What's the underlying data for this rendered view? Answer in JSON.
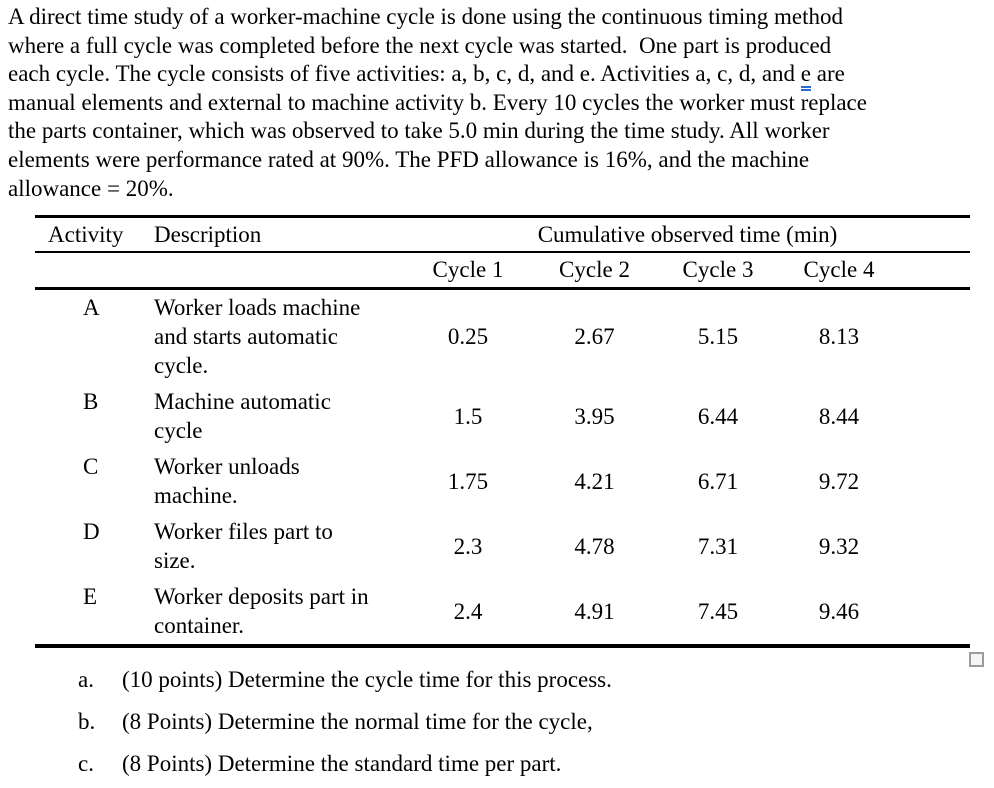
{
  "intro": {
    "line1": "A direct time study of a worker-machine cycle is done using the continuous timing method",
    "line2": "where a full cycle was completed before the next cycle was started.  One part is produced",
    "line3_before": "each cycle. The cycle consists of five activities: a, b, c, d, and e. Activities a, c, d, and ",
    "line3_marked": "e",
    "line3_after": " are",
    "line4": "manual elements and external to machine activity b. Every 10 cycles the worker must replace",
    "line5": "the parts container, which was observed to take 5.0 min during the time study. All worker",
    "line6": "elements were performance rated at 90%. The PFD allowance is 16%, and the machine",
    "line7": "allowance = 20%."
  },
  "table": {
    "headers": {
      "activity": "Activity",
      "description": "Description",
      "cumulative": "Cumulative observed time (min)",
      "cycles": [
        "Cycle 1",
        "Cycle 2",
        "Cycle 3",
        "Cycle 4"
      ]
    },
    "rows": [
      {
        "activity": "A",
        "description": "Worker loads machine\nand starts automatic\ncycle.",
        "times": [
          "0.25",
          "2.67",
          "5.15",
          "8.13"
        ]
      },
      {
        "activity": "B",
        "description": "Machine automatic\ncycle",
        "times": [
          "1.5",
          "3.95",
          "6.44",
          "8.44"
        ]
      },
      {
        "activity": "C",
        "description": "Worker unloads\nmachine.",
        "times": [
          "1.75",
          "4.21",
          "6.71",
          "9.72"
        ]
      },
      {
        "activity": "D",
        "description": "Worker files part to\nsize.",
        "times": [
          "2.3",
          "4.78",
          "7.31",
          "9.32"
        ]
      },
      {
        "activity": "E",
        "description": "Worker deposits part in\ncontainer.",
        "times": [
          "2.4",
          "4.91",
          "7.45",
          "9.46"
        ]
      }
    ]
  },
  "questions": [
    {
      "label": "a.",
      "text": "(10 points) Determine the cycle time for this process."
    },
    {
      "label": "b.",
      "text": "(8 Points) Determine the normal time for the cycle,"
    },
    {
      "label": "c.",
      "text": "(8 Points) Determine the standard time per part."
    }
  ],
  "colors": {
    "grammar_underline": "#2b6bd4",
    "text": "#000000",
    "background": "#ffffff"
  }
}
